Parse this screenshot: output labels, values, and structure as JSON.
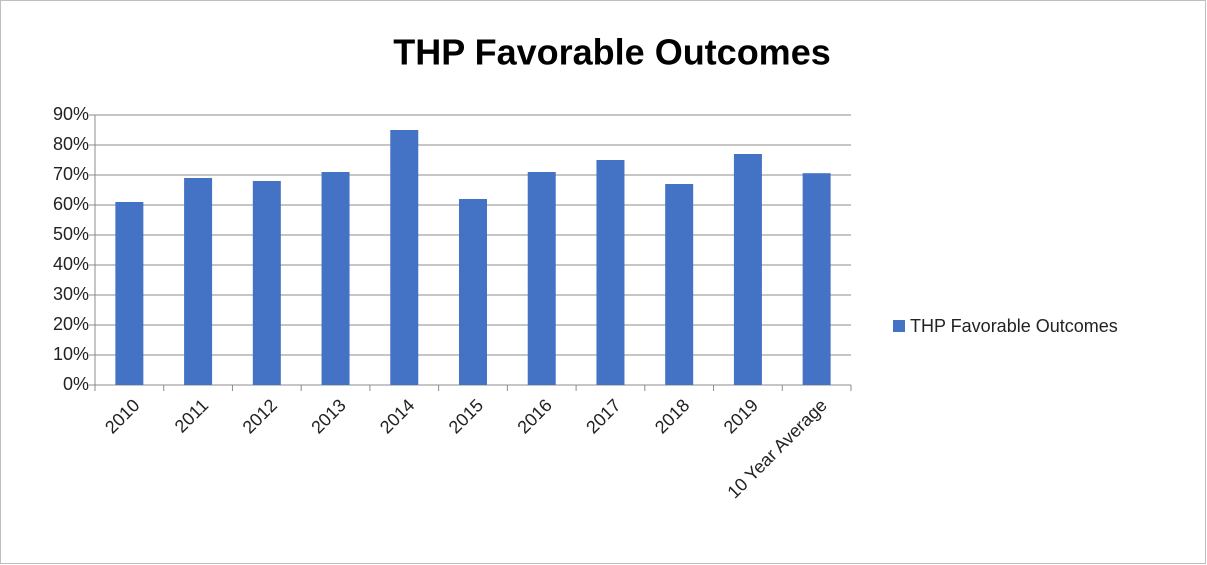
{
  "chart_data": {
    "type": "bar",
    "title": "THP Favorable Outcomes",
    "categories": [
      "2010",
      "2011",
      "2012",
      "2013",
      "2014",
      "2015",
      "2016",
      "2017",
      "2018",
      "2019",
      "10 Year Average"
    ],
    "series": [
      {
        "name": "THP Favorable Outcomes",
        "color": "#4472c4",
        "values": [
          61,
          69,
          68,
          71,
          85,
          62,
          71,
          75,
          67,
          77,
          70.6
        ]
      }
    ],
    "ylim": [
      0,
      90
    ],
    "yticks": [
      {
        "value": 0,
        "label": "0%"
      },
      {
        "value": 10,
        "label": "10%"
      },
      {
        "value": 20,
        "label": "20%"
      },
      {
        "value": 30,
        "label": "30%"
      },
      {
        "value": 40,
        "label": "40%"
      },
      {
        "value": 50,
        "label": "50%"
      },
      {
        "value": 60,
        "label": "60%"
      },
      {
        "value": 70,
        "label": "70%"
      },
      {
        "value": 80,
        "label": "80%"
      },
      {
        "value": 90,
        "label": "90%"
      }
    ],
    "grid": true,
    "legend": "right"
  }
}
